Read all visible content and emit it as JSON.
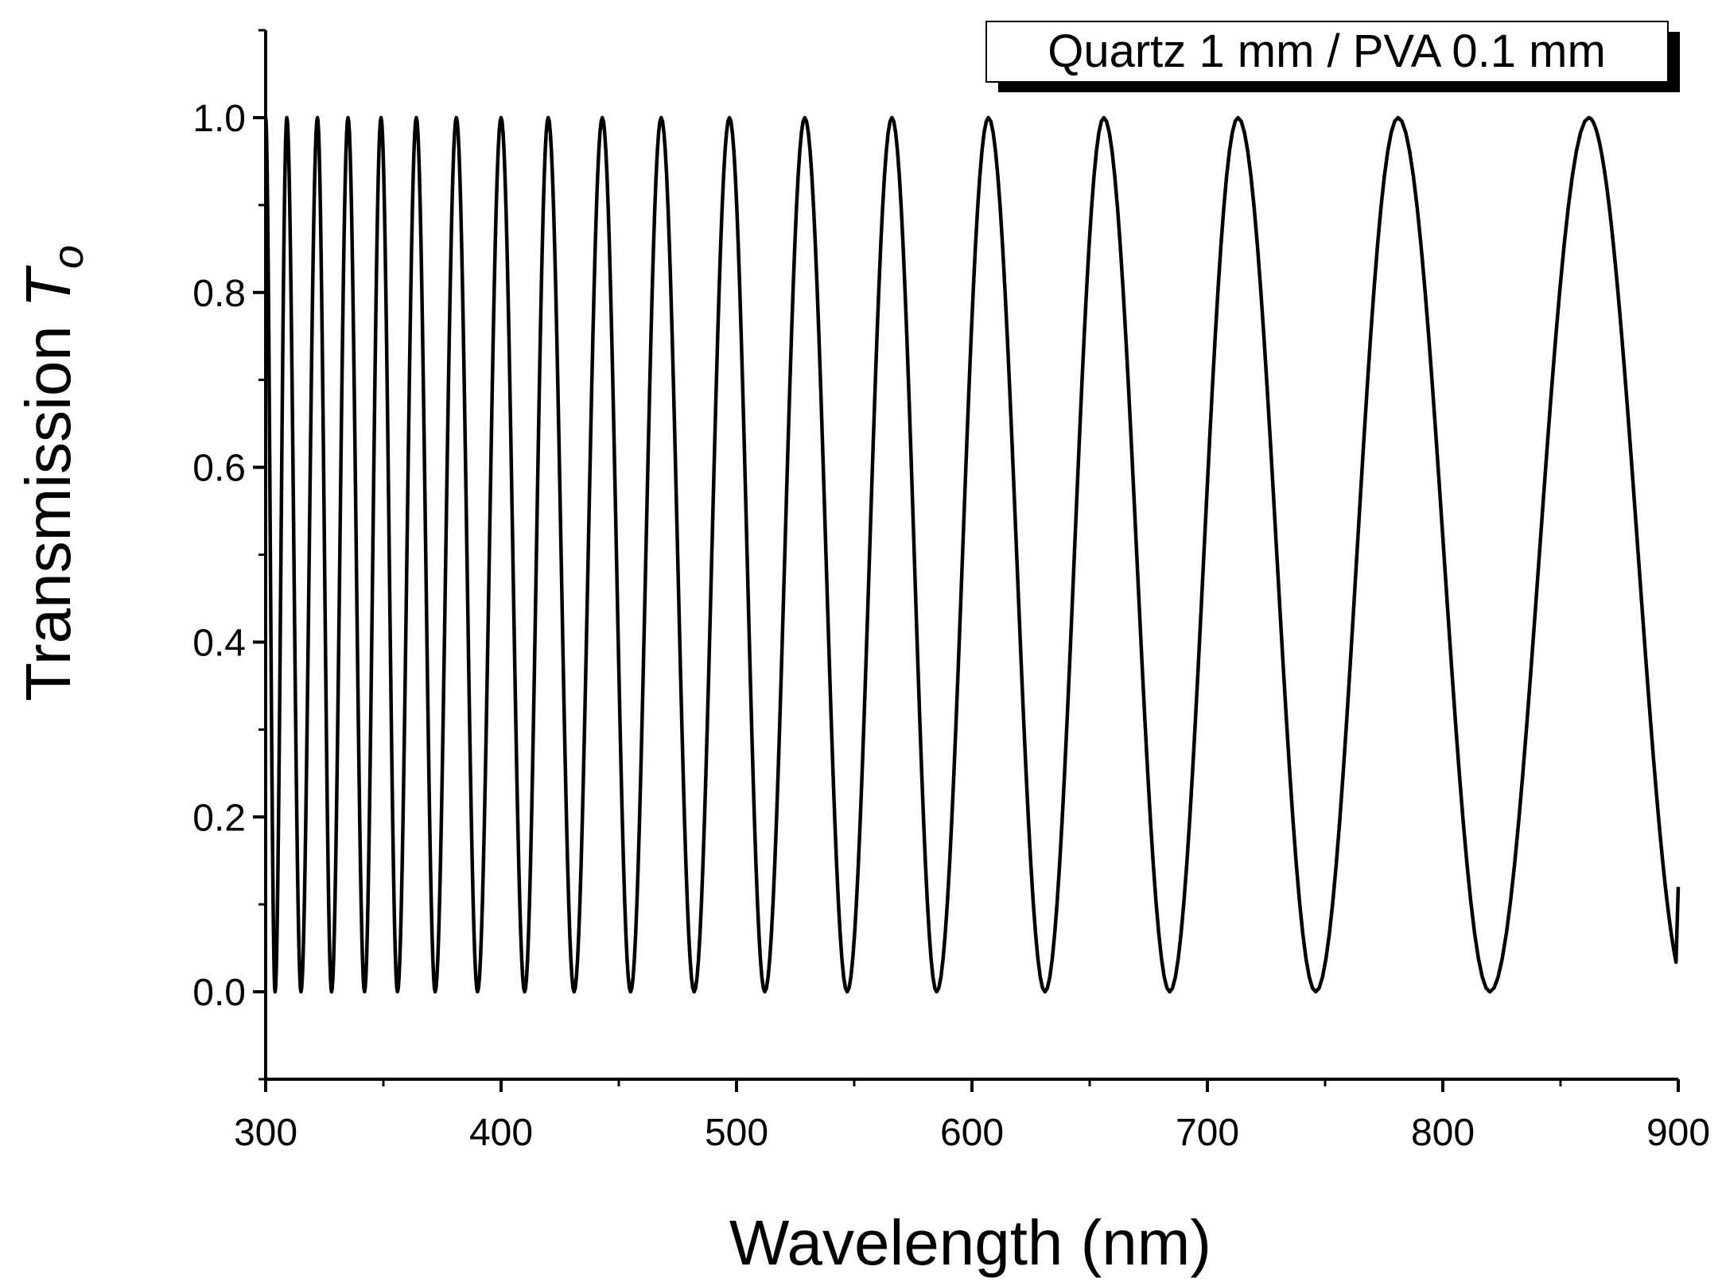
{
  "chart_data": {
    "type": "line",
    "title": "",
    "xlabel": "Wavelength (nm)",
    "ylabel_main": "Transmission ",
    "ylabel_italic": "T",
    "ylabel_subscript": "o",
    "xlim": [
      300,
      900
    ],
    "ylim": [
      -0.1,
      1.1
    ],
    "x_ticks": [
      300,
      400,
      500,
      600,
      700,
      800,
      900
    ],
    "x_tick_labels": [
      "300",
      "400",
      "500",
      "600",
      "700",
      "800",
      "900"
    ],
    "x_minor_ticks": [
      350,
      450,
      550,
      650,
      750,
      850
    ],
    "y_ticks": [
      0.0,
      0.2,
      0.4,
      0.6,
      0.8,
      1.0
    ],
    "y_tick_labels": [
      "0.0",
      "0.2",
      "0.4",
      "0.6",
      "0.8",
      "1.0"
    ],
    "y_minor_ticks": [
      -0.1,
      0.1,
      0.3,
      0.5,
      0.7,
      0.9,
      1.1
    ],
    "grid": false,
    "legend": {
      "text": "Quartz 1 mm / PVA 0.1 mm",
      "placement": "top-right"
    },
    "series": [
      {
        "name": "Quartz 1 mm / PVA 0.1 mm",
        "color": "#000000",
        "x_range": [
          300,
          900
        ],
        "maxima_nm": [
          309,
          322,
          335,
          349,
          364,
          381,
          400,
          420,
          443,
          468,
          497,
          529,
          566,
          607,
          656,
          713,
          781,
          862
        ],
        "minima_nm": [
          304,
          315,
          328,
          342,
          356,
          372,
          390,
          410,
          431,
          455,
          482,
          512,
          547,
          585,
          631,
          684,
          746,
          820
        ],
        "y_max": 1.0,
        "y_min": 0.0,
        "end_value": 0.12
      }
    ]
  }
}
